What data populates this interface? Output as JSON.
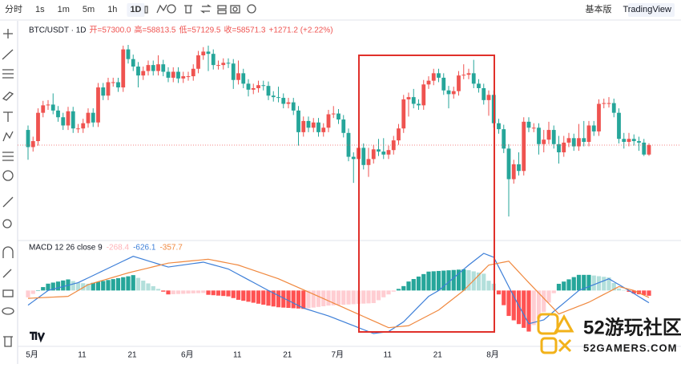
{
  "toolbar": {
    "intervals": [
      "分时",
      "1s",
      "1m",
      "5m",
      "1h",
      "1D"
    ],
    "active": 5,
    "modes": [
      "基本版",
      "TradingView"
    ],
    "active_mode": 1
  },
  "chart_data": [
    {
      "type": "candlestick",
      "title": "BTC/USDT · 1D",
      "header": [
        "开=57300.0",
        "高=58813.5",
        "低=57129.5",
        "收=58571.3",
        "+1271.2 (+2.22%)"
      ],
      "up_color": "#ef5350",
      "down_color": "#26a69a",
      "categories": [
        "5月",
        null,
        null,
        null,
        null,
        null,
        null,
        null,
        null,
        null,
        "11",
        null,
        null,
        null,
        null,
        null,
        null,
        null,
        null,
        null,
        "21",
        null,
        null,
        null,
        null,
        null,
        null,
        null,
        null,
        null,
        null,
        "6月",
        null,
        null,
        null,
        null,
        null,
        null,
        null,
        null,
        null,
        "11",
        null,
        null,
        null,
        null,
        null,
        null,
        null,
        null,
        null,
        "21",
        null,
        null,
        null,
        null,
        null,
        null,
        null,
        null,
        null,
        "7月",
        null,
        null,
        null,
        null,
        null,
        null,
        null,
        null,
        null,
        "11",
        null,
        null,
        null,
        null,
        null,
        null,
        null,
        null,
        null,
        "21",
        null,
        null,
        null,
        null,
        null,
        null,
        null,
        null,
        null,
        null,
        "8月",
        null,
        null,
        null,
        null,
        null,
        null,
        null,
        null,
        null,
        null,
        null,
        null,
        null,
        null,
        null,
        null,
        null,
        null,
        null,
        null,
        null,
        null,
        null,
        null,
        null,
        null,
        null,
        null,
        null,
        null,
        null,
        null
      ],
      "open": [
        60600,
        58300,
        59100,
        62900,
        63900,
        64000,
        63200,
        62300,
        61200,
        63100,
        60800,
        60800,
        61500,
        62900,
        61600,
        66300,
        65200,
        67000,
        67000,
        66300,
        71400,
        70100,
        69100,
        67900,
        68500,
        69300,
        68500,
        69400,
        68400,
        67600,
        68400,
        67500,
        67800,
        67800,
        68800,
        70600,
        71100,
        70800,
        69300,
        69300,
        69600,
        69500,
        67300,
        68200,
        66800,
        66000,
        66200,
        66600,
        66500,
        65200,
        65000,
        64900,
        64100,
        64300,
        63200,
        60300,
        61800,
        60900,
        61600,
        60300,
        60900,
        62700,
        62800,
        62000,
        60200,
        57000,
        56700,
        58200,
        55900,
        56700,
        58000,
        57700,
        57300,
        57900,
        59200,
        60800,
        64700,
        65000,
        64100,
        63900,
        66700,
        67200,
        68200,
        67600,
        65900,
        65400,
        65800,
        67900,
        68000,
        68200,
        66800,
        66200,
        64600,
        65300,
        61500,
        60700,
        58100,
        54000,
        56000,
        55100,
        61700,
        60900,
        60900,
        58700,
        59300,
        60600,
        58700,
        57600,
        58900,
        59500,
        58400,
        59500,
        59000,
        61200,
        60400,
        64100,
        64200,
        64200,
        62900,
        59400,
        59000,
        59400,
        59100,
        58900,
        57300
      ],
      "high": [
        61200,
        59700,
        63500,
        64500,
        64600,
        65500,
        63800,
        62900,
        63700,
        63700,
        61400,
        62100,
        63500,
        63500,
        66900,
        66900,
        67600,
        67600,
        67600,
        71900,
        72000,
        70700,
        69700,
        69100,
        69900,
        69900,
        70600,
        70000,
        69000,
        69000,
        69000,
        68400,
        68400,
        69400,
        71200,
        71700,
        71900,
        71400,
        69900,
        70200,
        70200,
        70100,
        69900,
        68800,
        67400,
        66800,
        67200,
        67200,
        67100,
        65800,
        66400,
        65500,
        64900,
        64900,
        63800,
        62400,
        62400,
        62200,
        62200,
        61500,
        63300,
        63800,
        63400,
        62600,
        60800,
        57600,
        58800,
        58800,
        58200,
        58600,
        59400,
        59500,
        58500,
        59800,
        61400,
        65300,
        65600,
        66100,
        64700,
        67300,
        67800,
        68800,
        68800,
        68200,
        66500,
        66400,
        68500,
        69400,
        68800,
        70000,
        67400,
        66800,
        65900,
        65900,
        62100,
        61300,
        58700,
        56600,
        57600,
        62300,
        62300,
        61500,
        61500,
        60600,
        61700,
        61200,
        59800,
        59800,
        60200,
        60100,
        61400,
        61800,
        61800,
        61800,
        64700,
        64800,
        65000,
        64800,
        63500,
        60200,
        60200,
        60000,
        59700,
        59400,
        58813.5
      ],
      "low": [
        56600,
        57700,
        58500,
        62300,
        63300,
        62700,
        61700,
        60600,
        60600,
        60200,
        60200,
        60200,
        60900,
        61000,
        61000,
        64600,
        64600,
        66400,
        65700,
        65700,
        69500,
        68500,
        66300,
        67300,
        67900,
        67900,
        67900,
        67800,
        67000,
        67000,
        66900,
        66900,
        67200,
        67200,
        68200,
        70000,
        68500,
        68700,
        68700,
        68700,
        68900,
        66100,
        66700,
        66200,
        65100,
        65400,
        65600,
        65900,
        64600,
        64400,
        64300,
        63500,
        63500,
        62600,
        58500,
        59700,
        60300,
        60300,
        59700,
        59700,
        60300,
        62200,
        61400,
        59600,
        56400,
        53500,
        56100,
        55300,
        54300,
        56100,
        57100,
        56700,
        56700,
        57300,
        58600,
        60200,
        62400,
        63500,
        63300,
        63300,
        66100,
        66600,
        67000,
        65300,
        63500,
        64800,
        65200,
        67400,
        67400,
        66200,
        65600,
        64000,
        62500,
        60900,
        60100,
        57500,
        49000,
        53400,
        54500,
        54500,
        60300,
        60300,
        57300,
        57600,
        58700,
        58100,
        56100,
        57000,
        58300,
        57800,
        57800,
        58400,
        58400,
        59800,
        59800,
        63500,
        63600,
        62300,
        58800,
        58100,
        58400,
        58500,
        57800,
        57100,
        57129.5
      ],
      "close": [
        58300,
        59100,
        62900,
        63900,
        64000,
        63200,
        62300,
        61200,
        63100,
        60800,
        60800,
        61500,
        62900,
        61600,
        66300,
        65200,
        67000,
        67000,
        66300,
        71400,
        70100,
        69100,
        67900,
        68500,
        69300,
        68500,
        69400,
        68400,
        67600,
        68400,
        67500,
        67800,
        67800,
        68800,
        70600,
        71100,
        70800,
        69300,
        69300,
        69600,
        69500,
        67300,
        68200,
        66800,
        66000,
        66200,
        66600,
        66500,
        65200,
        65000,
        64900,
        64100,
        64300,
        63200,
        60300,
        61800,
        60900,
        61600,
        60300,
        60900,
        62700,
        62800,
        62000,
        60200,
        57000,
        56700,
        58200,
        55900,
        56700,
        58000,
        57700,
        57300,
        57900,
        59200,
        60800,
        64700,
        65000,
        64100,
        63900,
        66700,
        67200,
        68200,
        67600,
        65900,
        65400,
        65800,
        67900,
        68000,
        68200,
        66800,
        66200,
        64600,
        65300,
        61500,
        60700,
        58100,
        54000,
        56000,
        55100,
        61700,
        60900,
        60900,
        58700,
        59300,
        60600,
        58700,
        57600,
        58900,
        59500,
        58400,
        59500,
        59000,
        61200,
        60400,
        64100,
        64200,
        64200,
        62900,
        59400,
        59000,
        59400,
        59100,
        58900,
        57300,
        58571.3
      ]
    },
    {
      "type": "macd",
      "title": "MACD 12 26 close 9",
      "hist_colors": [
        "#26a69a",
        "#b2dfdb",
        "#ff5252",
        "#ffcdd2"
      ],
      "series": [
        {
          "color": "#ffb3b8",
          "values": [
            -350,
            -175,
            0,
            175,
            350,
            405,
            458,
            513,
            567,
            483,
            400,
            373,
            345,
            393,
            441,
            489,
            536,
            584,
            632,
            680,
            727,
            787,
            646,
            505,
            364,
            223,
            82,
            -59,
            -200,
            -189,
            -179,
            -168,
            -157,
            -146,
            -136,
            -125,
            -220,
            -240,
            -260,
            -280,
            -300,
            -387,
            -475,
            -525,
            -575,
            -625,
            -675,
            -725,
            -775,
            -817,
            -857,
            -874,
            -889,
            -906,
            -921,
            -938,
            -905,
            -872,
            -840,
            -806,
            -771,
            -757,
            -743,
            -729,
            -714,
            -700,
            -686,
            -671,
            -657,
            -643,
            -496,
            -347,
            -200,
            -58,
            83,
            225,
            460,
            587,
            713,
            840,
            967,
            983,
            1000,
            1017,
            1033,
            1050,
            1067,
            1083,
            1040,
            980,
            920,
            860,
            500,
            350,
            -200,
            -750,
            -1300,
            -1525,
            -1717,
            -1908,
            -2100,
            -1766,
            -1434,
            -1100,
            -619,
            -138,
            343,
            457,
            571,
            686,
            800,
            800,
            800,
            767,
            733,
            700,
            667,
            383,
            100,
            17,
            -67,
            -157,
            -194,
            -232,
            -268.4
          ]
        },
        {
          "color": "#3d7fd8",
          "values": [
            -750,
            -563,
            -375,
            -188,
            0,
            67,
            133,
            200,
            267,
            333,
            400,
            523,
            645,
            768,
            891,
            1014,
            1136,
            1259,
            1382,
            1505,
            1627,
            1750,
            1671,
            1593,
            1514,
            1436,
            1357,
            1279,
            1200,
            1236,
            1271,
            1307,
            1343,
            1379,
            1414,
            1450,
            1380,
            1310,
            1240,
            1170,
            1100,
            963,
            825,
            688,
            550,
            413,
            275,
            138,
            0,
            -129,
            -257,
            -386,
            -514,
            -643,
            -771,
            -900,
            -980,
            -1060,
            -1140,
            -1220,
            -1300,
            -1400,
            -1500,
            -1600,
            -1700,
            -1800,
            -1900,
            -2000,
            -2100,
            -2200,
            -2167,
            -2133,
            -2100,
            -1933,
            -1767,
            -1600,
            -1340,
            -1080,
            -820,
            -560,
            -300,
            -150,
            0,
            217,
            433,
            650,
            867,
            1083,
            1300,
            1500,
            1700,
            1900,
            1800,
            1700,
            1200,
            700,
            200,
            -300,
            -767,
            -1233,
            -1700,
            -1633,
            -1567,
            -1500,
            -1286,
            -1071,
            -857,
            -643,
            -429,
            -214,
            0,
            100,
            200,
            300,
            400,
            500,
            600,
            450,
            300,
            150,
            0,
            -157,
            -313,
            -470,
            -626.1
          ]
        },
        {
          "color": "#f0883e",
          "values": [
            -400,
            -388,
            -375,
            -363,
            -350,
            -338,
            -325,
            -313,
            -300,
            -150,
            0,
            150,
            300,
            375,
            450,
            525,
            600,
            675,
            750,
            825,
            900,
            963,
            1025,
            1088,
            1150,
            1213,
            1275,
            1338,
            1400,
            1425,
            1450,
            1475,
            1500,
            1525,
            1550,
            1575,
            1600,
            1550,
            1500,
            1450,
            1400,
            1350,
            1300,
            1213,
            1125,
            1038,
            950,
            863,
            775,
            688,
            600,
            488,
            375,
            263,
            150,
            38,
            -75,
            -188,
            -300,
            -414,
            -529,
            -643,
            -757,
            -871,
            -986,
            -1100,
            -1214,
            -1329,
            -1443,
            -1557,
            -1671,
            -1786,
            -1900,
            -1875,
            -1850,
            -1825,
            -1800,
            -1667,
            -1533,
            -1400,
            -1267,
            -1133,
            -1000,
            -800,
            -600,
            -400,
            -200,
            0,
            260,
            520,
            780,
            1040,
            1300,
            1350,
            1400,
            1450,
            1500,
            1225,
            950,
            675,
            400,
            133,
            -133,
            -400,
            -667,
            -933,
            -1200,
            -1100,
            -1000,
            -900,
            -800,
            -700,
            -600,
            -467,
            -333,
            -200,
            -67,
            67,
            200,
            133,
            67,
            0,
            -119,
            -238,
            -357.7
          ]
        }
      ]
    }
  ],
  "watermark": {
    "title": "52游玩社区",
    "url": "52GAMERS.COM"
  }
}
